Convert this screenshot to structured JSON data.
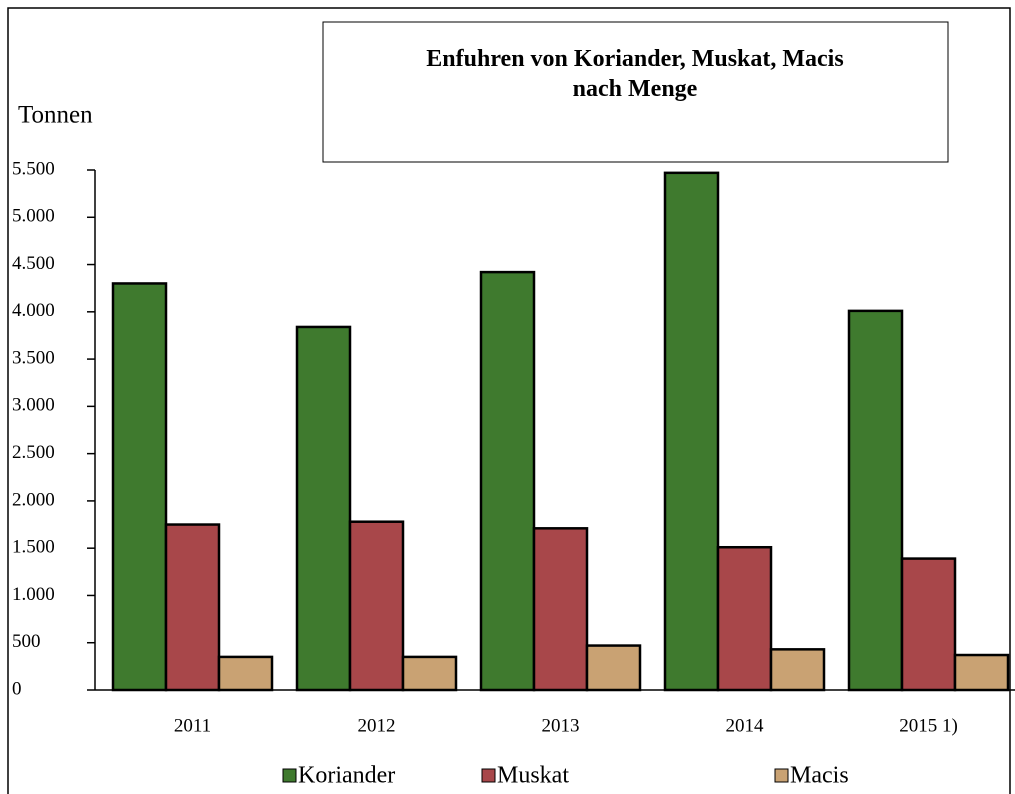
{
  "chart_data": {
    "type": "bar",
    "title": "Enfuhren von Koriander, Muskat, Macis nach Menge",
    "y_label": "Tonnen",
    "categories": [
      "2011",
      "2012",
      "2013",
      "2014",
      "2015 1)"
    ],
    "series": [
      {
        "name": "Koriander",
        "color": "#3f7a2e",
        "values": [
          4300,
          3840,
          4420,
          5470,
          4010
        ]
      },
      {
        "name": "Muskat",
        "color": "#a8474a",
        "values": [
          1750,
          1780,
          1710,
          1510,
          1390
        ]
      },
      {
        "name": "Macis",
        "color": "#c9a273",
        "values": [
          350,
          350,
          470,
          430,
          370
        ]
      }
    ],
    "ylim": [
      0,
      5500
    ],
    "yticks": [
      0,
      500,
      {
        "value": 1000,
        "label": "1.000"
      },
      {
        "value": 1500,
        "label": "1.500"
      },
      {
        "value": 2000,
        "label": "2.000"
      },
      {
        "value": 2500,
        "label": "2.500"
      },
      {
        "value": 3000,
        "label": "3.000"
      },
      {
        "value": 3500,
        "label": "3.500"
      },
      {
        "value": 4000,
        "label": "4.000"
      },
      {
        "value": 4500,
        "label": "4.500"
      },
      {
        "value": 5000,
        "label": "5.000"
      },
      {
        "value": 5500,
        "label": "5.500"
      }
    ],
    "legend": "bottom"
  }
}
